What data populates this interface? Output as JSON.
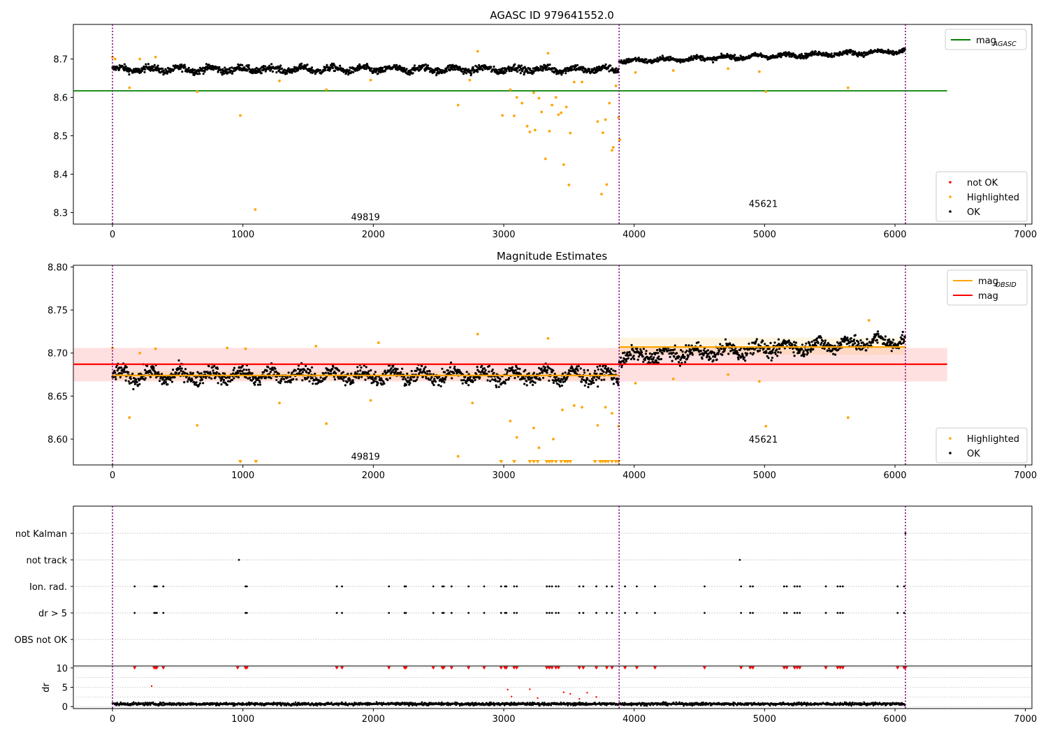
{
  "chart_data": [
    {
      "type": "scatter",
      "title": "AGASC ID 979641552.0",
      "xlim": [
        -300,
        7050
      ],
      "ylim": [
        8.27,
        8.79
      ],
      "xticks": [
        0,
        1000,
        2000,
        3000,
        4000,
        5000,
        6000,
        7000
      ],
      "yticks": [
        8.3,
        8.4,
        8.5,
        8.6,
        8.7
      ],
      "obs_boundaries": [
        0,
        3885,
        6080
      ],
      "obs_labels": [
        {
          "text": "49819",
          "x": 1940,
          "y": 8.28
        },
        {
          "text": "45621",
          "x": 4990,
          "y": 8.315
        }
      ],
      "lines": [
        {
          "name": "mag_AGASC",
          "y": 8.617,
          "x_range": [
            -300,
            6400
          ],
          "color": "#008000"
        }
      ],
      "ok_segments": [
        {
          "x": [
            0,
            3885
          ],
          "level": 8.673,
          "spread": 0.012
        },
        {
          "x": [
            3885,
            6080
          ],
          "level_start": 8.694,
          "level_end": 8.72,
          "spread": 0.008
        }
      ],
      "highlighted_points": [
        [
          0,
          8.705
        ],
        [
          20,
          8.7
        ],
        [
          130,
          8.625
        ],
        [
          210,
          8.7
        ],
        [
          330,
          8.705
        ],
        [
          650,
          8.615
        ],
        [
          980,
          8.553
        ],
        [
          1095,
          8.308
        ],
        [
          1280,
          8.643
        ],
        [
          1640,
          8.62
        ],
        [
          1980,
          8.645
        ],
        [
          2740,
          8.645
        ],
        [
          2650,
          8.58
        ],
        [
          2800,
          8.72
        ],
        [
          2990,
          8.553
        ],
        [
          3050,
          8.62
        ],
        [
          3080,
          8.552
        ],
        [
          3100,
          8.6
        ],
        [
          3140,
          8.585
        ],
        [
          3180,
          8.525
        ],
        [
          3200,
          8.51
        ],
        [
          3230,
          8.612
        ],
        [
          3240,
          8.515
        ],
        [
          3270,
          8.598
        ],
        [
          3290,
          8.562
        ],
        [
          3320,
          8.44
        ],
        [
          3340,
          8.715
        ],
        [
          3350,
          8.512
        ],
        [
          3370,
          8.58
        ],
        [
          3400,
          8.6
        ],
        [
          3420,
          8.555
        ],
        [
          3440,
          8.56
        ],
        [
          3460,
          8.425
        ],
        [
          3480,
          8.575
        ],
        [
          3500,
          8.372
        ],
        [
          3510,
          8.507
        ],
        [
          3540,
          8.64
        ],
        [
          3600,
          8.64
        ],
        [
          3720,
          8.537
        ],
        [
          3750,
          8.348
        ],
        [
          3760,
          8.508
        ],
        [
          3780,
          8.542
        ],
        [
          3790,
          8.373
        ],
        [
          3810,
          8.585
        ],
        [
          3830,
          8.462
        ],
        [
          3840,
          8.47
        ],
        [
          3860,
          8.63
        ],
        [
          3880,
          8.548
        ],
        [
          3890,
          8.49
        ],
        [
          4010,
          8.665
        ],
        [
          4300,
          8.67
        ],
        [
          4720,
          8.675
        ],
        [
          4960,
          8.667
        ],
        [
          5010,
          8.615
        ],
        [
          5640,
          8.625
        ]
      ],
      "legends": [
        {
          "position": "top-right",
          "entries": [
            {
              "label": "mag",
              "sub": "AGASC",
              "kind": "line",
              "color": "#008000"
            }
          ]
        },
        {
          "position": "lower-right",
          "entries": [
            {
              "label": "not OK",
              "kind": "dot",
              "color": "#ff0000"
            },
            {
              "label": "Highlighted",
              "kind": "dot",
              "color": "#ffa500"
            },
            {
              "label": "OK",
              "kind": "dot",
              "color": "#000000"
            }
          ]
        }
      ]
    },
    {
      "type": "scatter",
      "title": "Magnitude Estimates",
      "xlim": [
        -300,
        7050
      ],
      "ylim": [
        8.57,
        8.802
      ],
      "xticks": [
        0,
        1000,
        2000,
        3000,
        4000,
        5000,
        6000,
        7000
      ],
      "yticks": [
        8.6,
        8.65,
        8.7,
        8.75,
        8.8
      ],
      "obs_boundaries": [
        0,
        3885,
        6080
      ],
      "obs_labels": [
        {
          "text": "49819",
          "x": 1940,
          "y": 8.576
        },
        {
          "text": "45621",
          "x": 4990,
          "y": 8.596
        }
      ],
      "lines": [
        {
          "name": "mag",
          "y": 8.687,
          "x_range": [
            -300,
            6400
          ],
          "band": [
            8.667,
            8.706
          ],
          "color": "#ff0000"
        },
        {
          "name": "mag_OBSID",
          "y": 8.674,
          "x_range": [
            0,
            3885
          ],
          "band": [
            8.669,
            8.679
          ],
          "color": "#ffa500"
        },
        {
          "name": "mag_OBSID",
          "y": 8.707,
          "x_range": [
            3885,
            6080
          ],
          "band": [
            8.698,
            8.718
          ],
          "color": "#ffa500"
        }
      ],
      "ok_segments": [
        {
          "x": [
            0,
            3885
          ],
          "level": 8.674,
          "spread": 0.012
        },
        {
          "x": [
            3885,
            6080
          ],
          "level_start": 8.695,
          "level_end": 8.715,
          "spread": 0.011
        }
      ],
      "highlighted_points": [
        [
          0,
          8.706
        ],
        [
          130,
          8.625
        ],
        [
          210,
          8.7
        ],
        [
          330,
          8.705
        ],
        [
          650,
          8.616
        ],
        [
          880,
          8.706
        ],
        [
          1020,
          8.705
        ],
        [
          1280,
          8.642
        ],
        [
          1560,
          8.708
        ],
        [
          1640,
          8.618
        ],
        [
          1980,
          8.645
        ],
        [
          2040,
          8.712
        ],
        [
          2650,
          8.58
        ],
        [
          2760,
          8.642
        ],
        [
          2800,
          8.722
        ],
        [
          3050,
          8.621
        ],
        [
          3100,
          8.602
        ],
        [
          3230,
          8.613
        ],
        [
          3270,
          8.59
        ],
        [
          3340,
          8.717
        ],
        [
          3380,
          8.6
        ],
        [
          3450,
          8.634
        ],
        [
          3540,
          8.639
        ],
        [
          3600,
          8.637
        ],
        [
          3720,
          8.616
        ],
        [
          3780,
          8.637
        ],
        [
          3830,
          8.63
        ],
        [
          3880,
          8.615
        ],
        [
          4010,
          8.665
        ],
        [
          4300,
          8.67
        ],
        [
          4720,
          8.675
        ],
        [
          4960,
          8.667
        ],
        [
          5010,
          8.615
        ],
        [
          5640,
          8.625
        ],
        [
          5800,
          8.738
        ]
      ],
      "below_range_markers": [
        980,
        1100,
        2980,
        3080,
        3200,
        3230,
        3260,
        3330,
        3350,
        3370,
        3400,
        3440,
        3470,
        3490,
        3510,
        3700,
        3740,
        3760,
        3780,
        3800,
        3830,
        3860,
        3880
      ],
      "legends": [
        {
          "position": "top-right",
          "entries": [
            {
              "label": "mag",
              "sub": "OBSID",
              "kind": "line",
              "color": "#ffa500"
            },
            {
              "label": "mag",
              "kind": "line",
              "color": "#ff0000"
            }
          ]
        },
        {
          "position": "lower-right",
          "entries": [
            {
              "label": "Highlighted",
              "kind": "dot",
              "color": "#ffa500"
            },
            {
              "label": "OK",
              "kind": "dot",
              "color": "#000000"
            }
          ]
        }
      ]
    },
    {
      "type": "scatter",
      "title": "",
      "xlim": [
        -300,
        7050
      ],
      "ylabel": "",
      "flag_rows": [
        "not Kalman",
        "not track",
        "Ion. rad.",
        "dr > 5",
        "OBS not OK"
      ],
      "flag_events": {
        "not Kalman": [
          6080
        ],
        "not track": [
          970,
          4810
        ],
        "Ion. rad.": [
          170,
          320,
          330,
          340,
          390,
          1020,
          1030,
          1720,
          1760,
          2120,
          2240,
          2250,
          2460,
          2530,
          2540,
          2600,
          2730,
          2850,
          2980,
          3010,
          3020,
          3080,
          3100,
          3330,
          3350,
          3370,
          3400,
          3420,
          3580,
          3610,
          3710,
          3790,
          3830,
          3930,
          4020,
          4160,
          4540,
          4820,
          4890,
          4910,
          5150,
          5170,
          5230,
          5250,
          5270,
          5470,
          5560,
          5580,
          5600,
          6020,
          6070
        ],
        "dr > 5": [
          170,
          320,
          330,
          340,
          390,
          1020,
          1030,
          1720,
          1760,
          2120,
          2240,
          2250,
          2460,
          2530,
          2540,
          2600,
          2730,
          2850,
          2980,
          3010,
          3020,
          3080,
          3100,
          3330,
          3350,
          3370,
          3400,
          3420,
          3580,
          3610,
          3710,
          3790,
          3830,
          3930,
          4020,
          4160,
          4540,
          4820,
          4890,
          4910,
          5150,
          5170,
          5230,
          5250,
          5270,
          5470,
          5560,
          5580,
          5600,
          6020,
          6070
        ],
        "OBS not OK": []
      },
      "obs_boundaries": [
        0,
        3885,
        6080
      ]
    },
    {
      "type": "scatter",
      "title": "",
      "ylabel": "dr",
      "xlim": [
        -300,
        7050
      ],
      "ylim": [
        -0.5,
        10.5
      ],
      "xticks": [
        0,
        1000,
        2000,
        3000,
        4000,
        5000,
        6000,
        7000
      ],
      "yticks": [
        0,
        5,
        10
      ],
      "obs_boundaries": [
        0,
        3885,
        6080
      ],
      "dr_level": 0.7,
      "dr_spread": 0.35,
      "outlier_points": [
        [
          300,
          5.3
        ],
        [
          3030,
          4.4
        ],
        [
          3200,
          4.5
        ],
        [
          3460,
          3.7
        ],
        [
          3510,
          3.3
        ],
        [
          3640,
          3.6
        ],
        [
          3710,
          2.5
        ],
        [
          3060,
          2.6
        ],
        [
          3260,
          2.2
        ],
        [
          3580,
          2.0
        ]
      ],
      "clipped_markers": [
        170,
        320,
        330,
        340,
        390,
        960,
        1020,
        1030,
        1720,
        1760,
        2120,
        2240,
        2250,
        2460,
        2530,
        2540,
        2600,
        2730,
        2850,
        2980,
        3010,
        3020,
        3080,
        3100,
        3330,
        3350,
        3370,
        3400,
        3420,
        3580,
        3610,
        3710,
        3790,
        3830,
        3930,
        4020,
        4160,
        4540,
        4820,
        4890,
        4910,
        5150,
        5170,
        5230,
        5250,
        5270,
        5470,
        5560,
        5580,
        5600,
        6020,
        6070,
        6080
      ]
    }
  ]
}
